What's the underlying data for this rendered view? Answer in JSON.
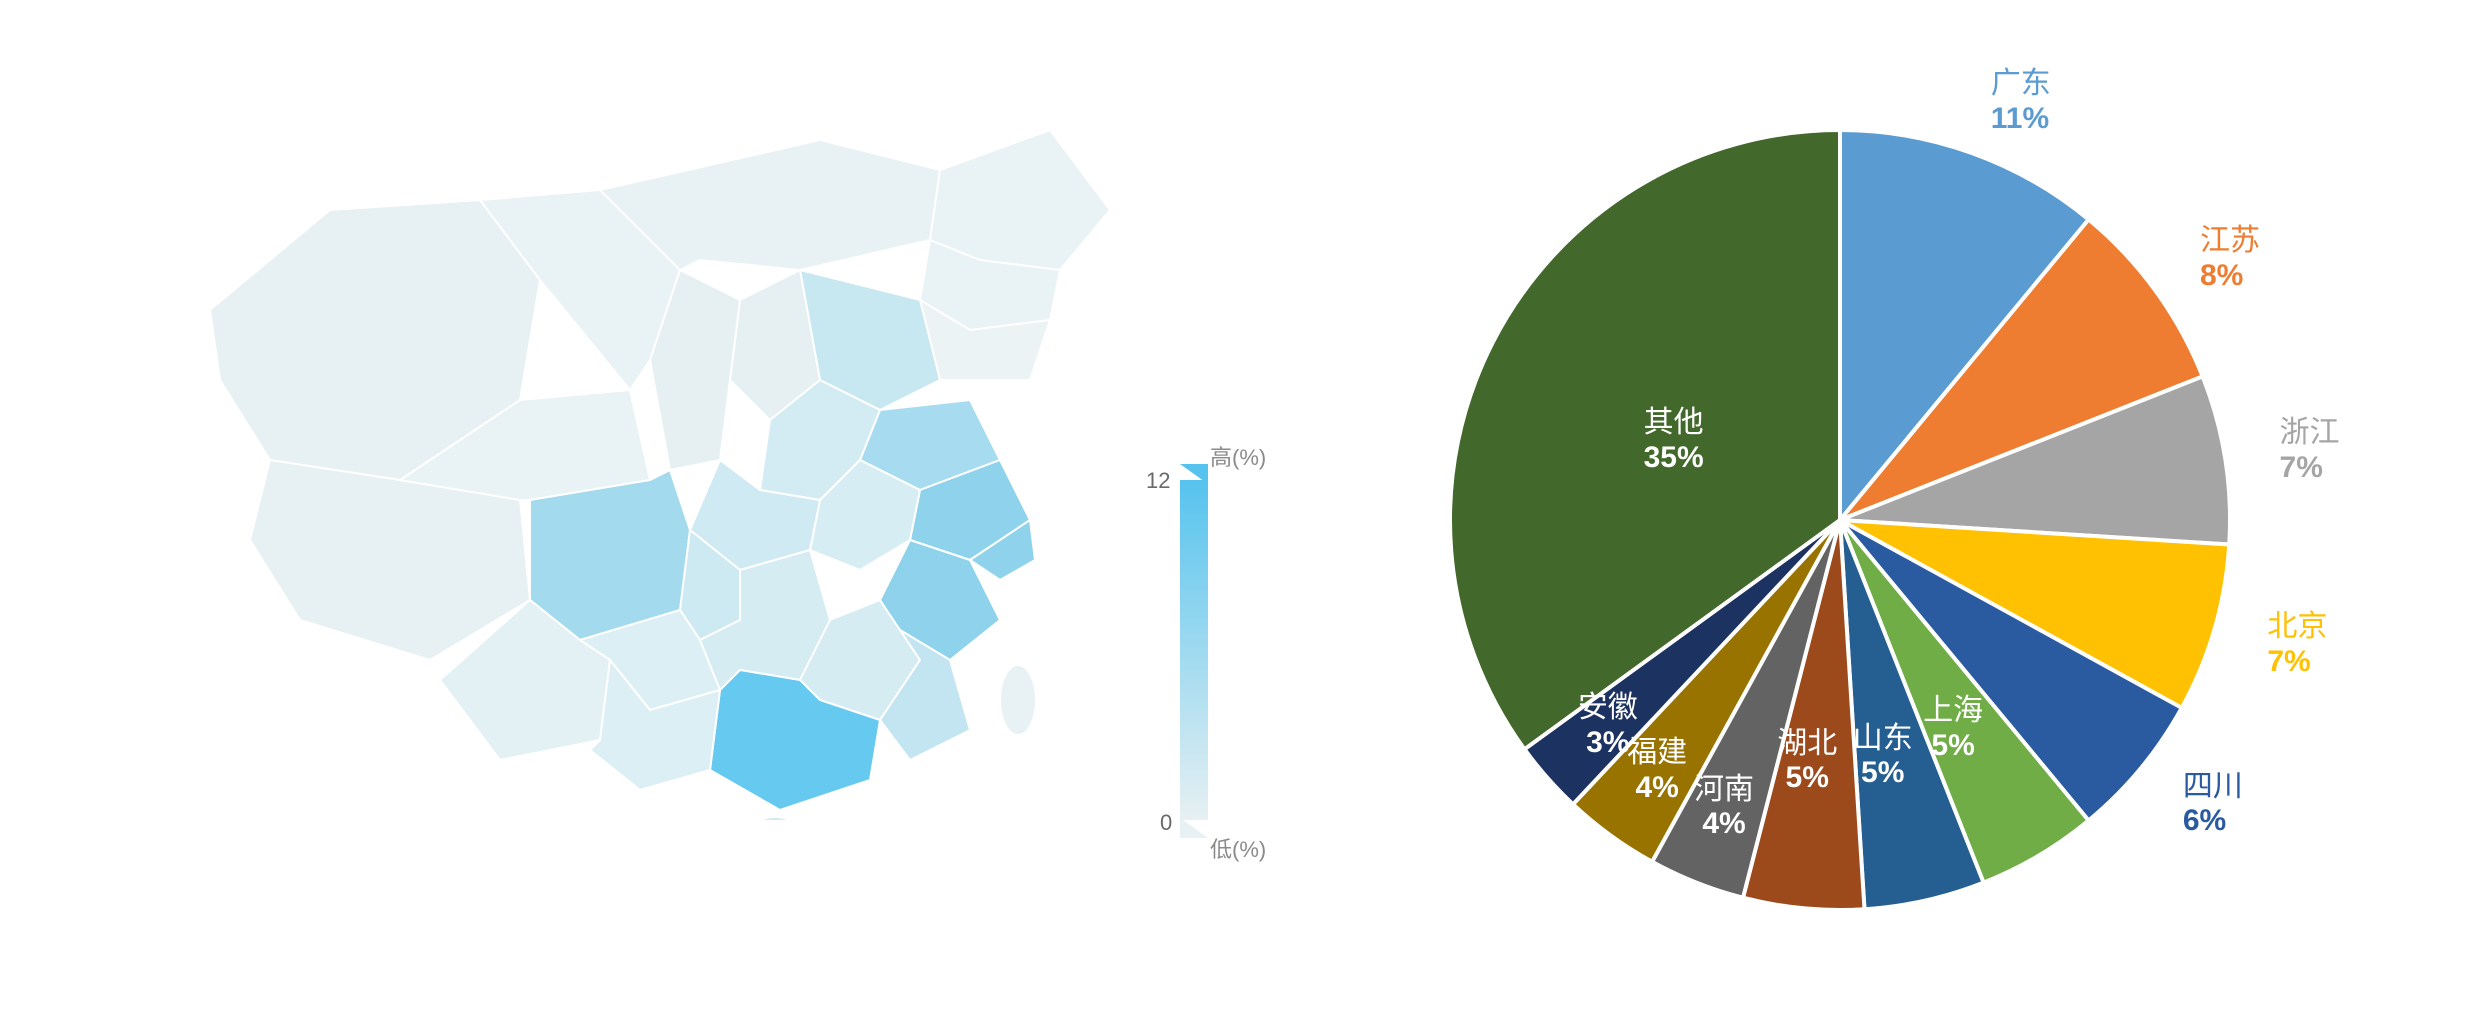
{
  "background_color": "#ffffff",
  "map": {
    "type": "choropleth-map",
    "region": "China",
    "stroke_color": "#ffffff",
    "stroke_width": 2,
    "color_scale": {
      "low_color": "#e7f0f2",
      "high_color": "#56c3ee",
      "min": 0,
      "max": 12
    },
    "legend": {
      "high_label": "高(%)",
      "low_label": "低(%)",
      "max_tick": "12",
      "min_tick": "0",
      "label_fontsize": 22,
      "label_color": "#8a8a8a",
      "tick_fontsize": 22,
      "tick_color": "#6a6a6a"
    },
    "highlight_note": "Eastern/coastal provinces shaded darker (Guangdong, Jiangsu, Zhejiang, Shandong, Sichuan highest)"
  },
  "pie": {
    "type": "pie",
    "radius": 390,
    "border_color": "#ffffff",
    "border_width": 4,
    "label_fontsize_outer": 30,
    "label_fontsize_inner": 30,
    "start_angle_deg_from_top": 0,
    "slices": [
      {
        "name": "广东",
        "value": 11,
        "pct_text": "11%",
        "color": "#5a9bd2",
        "label_placement": "outside",
        "label_color": "#5a9bd2"
      },
      {
        "name": "江苏",
        "value": 8,
        "pct_text": "8%",
        "color": "#ee7c31",
        "label_placement": "outside",
        "label_color": "#ee7c31"
      },
      {
        "name": "浙江",
        "value": 7,
        "pct_text": "7%",
        "color": "#a5a5a5",
        "label_placement": "outside",
        "label_color": "#a5a5a5"
      },
      {
        "name": "北京",
        "value": 7,
        "pct_text": "7%",
        "color": "#ffc101",
        "label_placement": "outside",
        "label_color": "#ffc101"
      },
      {
        "name": "四川",
        "value": 6,
        "pct_text": "6%",
        "color": "#2a5aa0",
        "label_placement": "outside",
        "label_color": "#2a5aa0"
      },
      {
        "name": "上海",
        "value": 5,
        "pct_text": "5%",
        "color": "#70ad46",
        "label_placement": "inside",
        "label_color": "#ffffff"
      },
      {
        "name": "山东",
        "value": 5,
        "pct_text": "5%",
        "color": "#255e90",
        "label_placement": "inside",
        "label_color": "#ffffff"
      },
      {
        "name": "湖北",
        "value": 5,
        "pct_text": "5%",
        "color": "#9c4a1c",
        "label_placement": "inside",
        "label_color": "#ffffff"
      },
      {
        "name": "河南",
        "value": 4,
        "pct_text": "4%",
        "color": "#636363",
        "label_placement": "inside",
        "label_color": "#ffffff"
      },
      {
        "name": "福建",
        "value": 4,
        "pct_text": "4%",
        "color": "#987300",
        "label_placement": "inside",
        "label_color": "#ffffff"
      },
      {
        "name": "安徽",
        "value": 3,
        "pct_text": "3%",
        "color": "#1c3260",
        "label_placement": "inside",
        "label_color": "#ffffff"
      },
      {
        "name": "其他",
        "value": 35,
        "pct_text": "35%",
        "color": "#43682b",
        "label_placement": "inside",
        "label_color": "#ffffff"
      }
    ]
  }
}
